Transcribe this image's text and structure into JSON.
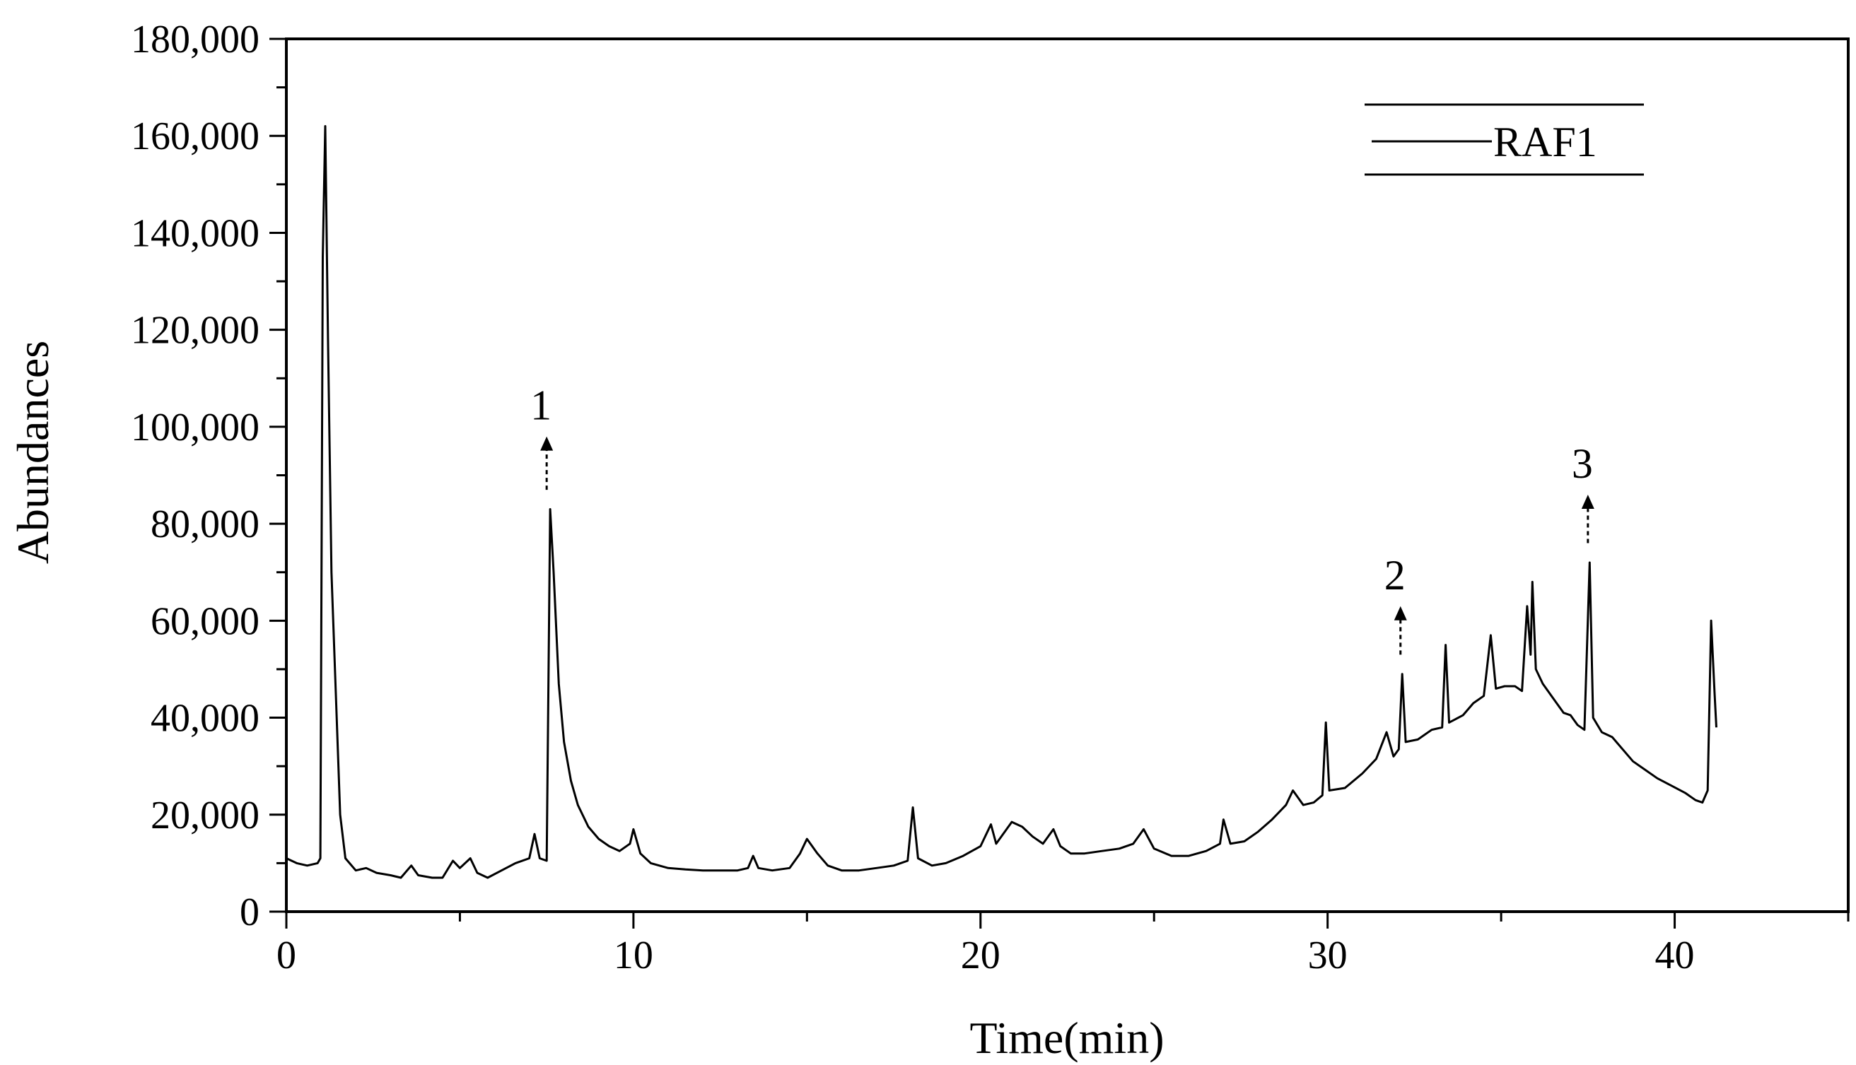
{
  "chart_data": {
    "type": "line",
    "title": "",
    "xlabel": "Time(min)",
    "ylabel": "Abundances",
    "xlim": [
      0,
      45
    ],
    "ylim": [
      0,
      180000
    ],
    "x_ticks": [
      0,
      10,
      20,
      30,
      40
    ],
    "x_tick_labels": [
      "0",
      "10",
      "20",
      "30",
      "40"
    ],
    "y_ticks": [
      0,
      20000,
      40000,
      60000,
      80000,
      100000,
      120000,
      140000,
      160000,
      180000
    ],
    "y_tick_labels": [
      "0",
      "20,000",
      "40,000",
      "60,000",
      "80,000",
      "100,000",
      "120,000",
      "140,000",
      "160,000",
      "180,000"
    ],
    "x_minor_step": 5,
    "y_minor_step": 10000,
    "grid": false,
    "legend": {
      "position": "top-right",
      "entries": [
        "RAF1"
      ]
    },
    "line_color": "#000000",
    "series": [
      {
        "name": "RAF1",
        "points": [
          [
            0.0,
            11000
          ],
          [
            0.3,
            10000
          ],
          [
            0.6,
            9500
          ],
          [
            0.9,
            10000
          ],
          [
            0.98,
            11000
          ],
          [
            1.05,
            135000
          ],
          [
            1.12,
            162000
          ],
          [
            1.2,
            118000
          ],
          [
            1.3,
            70000
          ],
          [
            1.45,
            40000
          ],
          [
            1.55,
            20000
          ],
          [
            1.7,
            11000
          ],
          [
            2.0,
            8500
          ],
          [
            2.3,
            9000
          ],
          [
            2.6,
            8000
          ],
          [
            3.0,
            7500
          ],
          [
            3.3,
            7000
          ],
          [
            3.6,
            9500
          ],
          [
            3.8,
            7500
          ],
          [
            4.2,
            7000
          ],
          [
            4.5,
            7000
          ],
          [
            4.8,
            10500
          ],
          [
            5.0,
            9000
          ],
          [
            5.3,
            11000
          ],
          [
            5.5,
            8000
          ],
          [
            5.8,
            7000
          ],
          [
            6.2,
            8500
          ],
          [
            6.6,
            10000
          ],
          [
            7.0,
            11000
          ],
          [
            7.15,
            16000
          ],
          [
            7.3,
            11000
          ],
          [
            7.5,
            10500
          ],
          [
            7.6,
            83000
          ],
          [
            7.7,
            70000
          ],
          [
            7.85,
            47000
          ],
          [
            8.0,
            35000
          ],
          [
            8.2,
            27000
          ],
          [
            8.4,
            22000
          ],
          [
            8.7,
            17500
          ],
          [
            9.0,
            15000
          ],
          [
            9.3,
            13500
          ],
          [
            9.6,
            12500
          ],
          [
            9.9,
            14000
          ],
          [
            10.0,
            17000
          ],
          [
            10.2,
            12000
          ],
          [
            10.5,
            10000
          ],
          [
            11.0,
            9000
          ],
          [
            11.5,
            8700
          ],
          [
            12.0,
            8500
          ],
          [
            12.5,
            8500
          ],
          [
            13.0,
            8500
          ],
          [
            13.3,
            9000
          ],
          [
            13.45,
            11500
          ],
          [
            13.6,
            9000
          ],
          [
            14.0,
            8500
          ],
          [
            14.5,
            9000
          ],
          [
            14.8,
            12000
          ],
          [
            15.0,
            15000
          ],
          [
            15.3,
            12000
          ],
          [
            15.6,
            9500
          ],
          [
            16.0,
            8500
          ],
          [
            16.5,
            8500
          ],
          [
            17.0,
            9000
          ],
          [
            17.5,
            9500
          ],
          [
            17.9,
            10500
          ],
          [
            18.05,
            21500
          ],
          [
            18.2,
            11000
          ],
          [
            18.6,
            9500
          ],
          [
            19.0,
            10000
          ],
          [
            19.5,
            11500
          ],
          [
            20.0,
            13500
          ],
          [
            20.3,
            18000
          ],
          [
            20.45,
            14000
          ],
          [
            20.6,
            15500
          ],
          [
            20.9,
            18500
          ],
          [
            21.2,
            17500
          ],
          [
            21.5,
            15500
          ],
          [
            21.8,
            14000
          ],
          [
            22.1,
            17000
          ],
          [
            22.3,
            13500
          ],
          [
            22.6,
            12000
          ],
          [
            23.0,
            12000
          ],
          [
            23.5,
            12500
          ],
          [
            24.0,
            13000
          ],
          [
            24.4,
            14000
          ],
          [
            24.7,
            17000
          ],
          [
            25.0,
            13000
          ],
          [
            25.5,
            11500
          ],
          [
            26.0,
            11500
          ],
          [
            26.5,
            12500
          ],
          [
            26.9,
            14000
          ],
          [
            27.0,
            19000
          ],
          [
            27.2,
            14000
          ],
          [
            27.6,
            14500
          ],
          [
            28.0,
            16500
          ],
          [
            28.4,
            19000
          ],
          [
            28.8,
            22000
          ],
          [
            29.0,
            25000
          ],
          [
            29.3,
            22000
          ],
          [
            29.6,
            22500
          ],
          [
            29.85,
            24000
          ],
          [
            29.95,
            39000
          ],
          [
            30.05,
            25000
          ],
          [
            30.5,
            25500
          ],
          [
            31.0,
            28500
          ],
          [
            31.4,
            31500
          ],
          [
            31.7,
            37000
          ],
          [
            31.9,
            32000
          ],
          [
            32.05,
            33500
          ],
          [
            32.15,
            49000
          ],
          [
            32.25,
            35000
          ],
          [
            32.6,
            35500
          ],
          [
            33.0,
            37500
          ],
          [
            33.3,
            38000
          ],
          [
            33.4,
            55000
          ],
          [
            33.5,
            39000
          ],
          [
            33.9,
            40500
          ],
          [
            34.2,
            43000
          ],
          [
            34.5,
            44500
          ],
          [
            34.7,
            57000
          ],
          [
            34.85,
            46000
          ],
          [
            35.1,
            46500
          ],
          [
            35.4,
            46500
          ],
          [
            35.6,
            45500
          ],
          [
            35.75,
            63000
          ],
          [
            35.85,
            53000
          ],
          [
            35.9,
            68000
          ],
          [
            36.0,
            50000
          ],
          [
            36.2,
            47000
          ],
          [
            36.5,
            44000
          ],
          [
            36.8,
            41000
          ],
          [
            37.0,
            40500
          ],
          [
            37.2,
            38500
          ],
          [
            37.4,
            37500
          ],
          [
            37.55,
            72000
          ],
          [
            37.65,
            40000
          ],
          [
            37.9,
            37000
          ],
          [
            38.2,
            36000
          ],
          [
            38.5,
            33500
          ],
          [
            38.8,
            31000
          ],
          [
            39.1,
            29500
          ],
          [
            39.5,
            27500
          ],
          [
            39.9,
            26000
          ],
          [
            40.3,
            24500
          ],
          [
            40.6,
            23000
          ],
          [
            40.8,
            22500
          ],
          [
            40.95,
            25000
          ],
          [
            41.05,
            60000
          ],
          [
            41.15,
            45000
          ],
          [
            41.2,
            38000
          ]
        ]
      }
    ],
    "annotations": [
      {
        "label": "1",
        "x": 7.5,
        "y_tip": 98000,
        "y_base": 87000
      },
      {
        "label": "2",
        "x": 32.1,
        "y_tip": 63000,
        "y_base": 53000
      },
      {
        "label": "3",
        "x": 37.5,
        "y_tip": 86000,
        "y_base": 76000
      }
    ]
  }
}
